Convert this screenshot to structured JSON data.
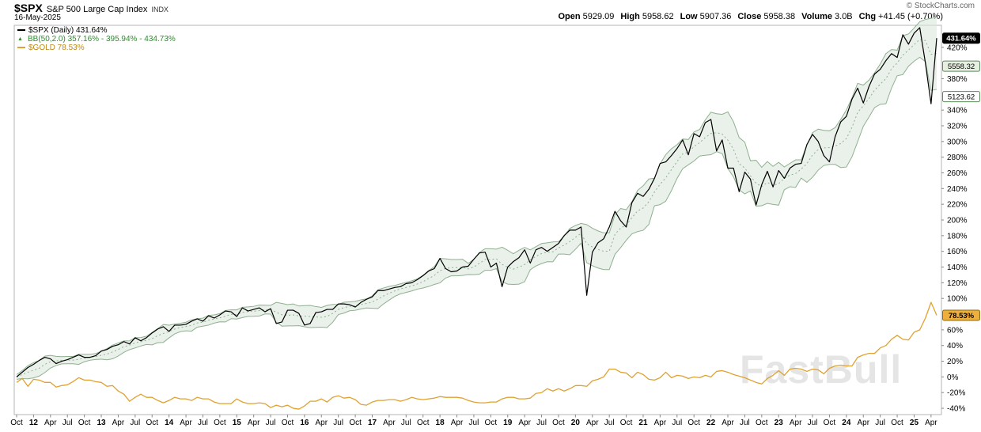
{
  "header": {
    "symbol": "$SPX",
    "name": "S&P 500 Large Cap Index",
    "exchange": "INDX",
    "date": "16-May-2025",
    "copyright": "© StockCharts.com",
    "quote": [
      {
        "label": "Open",
        "value": "5929.09"
      },
      {
        "label": "High",
        "value": "5958.62"
      },
      {
        "label": "Low",
        "value": "5907.36"
      },
      {
        "label": "Close",
        "value": "5958.38"
      },
      {
        "label": "Volume",
        "value": "3.0B"
      },
      {
        "label": "Chg",
        "value": "+41.45 (+0.70%)"
      }
    ]
  },
  "legend": {
    "spx": "$SPX (Daily) 431.64%",
    "bb": "BB(50,2.0) 357.16% - 395.94% - 434.73%",
    "gold": "$GOLD 78.53%"
  },
  "watermark": "FastBull",
  "colors": {
    "spx_line": "#000000",
    "gold_line": "#dfa231",
    "gold_legend": "#bb8a1a",
    "bb_green": "#2e8b2e",
    "band_fill": "#d8e6d8",
    "band_edge": "#8fb08f",
    "axis_text": "#000000",
    "border": "#b5b5b5",
    "watermark": "#cccccc"
  },
  "axis_markers": [
    {
      "label": "431.64%",
      "value": 431.64,
      "bg": "#000000",
      "fg": "#ffffff",
      "border": "#000000",
      "bold": true
    },
    {
      "label": "5558.32",
      "value": 395.94,
      "bg": "#e6efe0",
      "fg": "#000000",
      "border": "#5a8a5a",
      "bold": false
    },
    {
      "label": "5123.62",
      "value": 357.16,
      "bg": "#ffffff",
      "fg": "#000000",
      "border": "#5a8a5a",
      "bold": false
    },
    {
      "label": "78.53%",
      "value": 78.53,
      "bg": "#efaf3c",
      "fg": "#000000",
      "border": "#8a6a10",
      "bold": true
    }
  ],
  "chart_data": {
    "type": "line",
    "title": "$SPX daily percent performance vs $GOLD, Oct 2011 - 16 May 2025",
    "x_unit": "month",
    "x_start": "2011-10",
    "x_end": "2025-05",
    "x_tick_every": 3,
    "ylim": [
      -48,
      448
    ],
    "y_tick_step": 20,
    "y_tick_min": -40,
    "y_tick_max": 440,
    "grid": false,
    "legend_position": "top-left",
    "y_axis_side": "right",
    "x_tick_labels": [
      "Oct",
      "12",
      "Apr",
      "Jul",
      "Oct",
      "13",
      "Apr",
      "Jul",
      "Oct",
      "14",
      "Apr",
      "Jul",
      "Oct",
      "15",
      "Apr",
      "Jul",
      "Oct",
      "16",
      "Apr",
      "Jul",
      "Oct",
      "17",
      "Apr",
      "Jul",
      "Oct",
      "18",
      "Apr",
      "Jul",
      "Oct",
      "19",
      "Apr",
      "Jul",
      "Oct",
      "20",
      "Apr",
      "Jul",
      "Oct",
      "21",
      "Apr",
      "Jul",
      "Oct",
      "22",
      "Apr",
      "Jul",
      "Oct",
      "23",
      "Apr",
      "Jul",
      "Oct",
      "24",
      "Apr",
      "Jul",
      "Oct",
      "25",
      "Apr"
    ],
    "series": [
      {
        "name": "$SPX (Daily)",
        "color": "#000000",
        "last_value_pct": 431.64,
        "values": [
          0,
          6,
          12,
          16,
          21,
          25,
          23,
          17,
          20,
          22,
          25,
          28,
          25,
          25,
          27,
          33,
          35,
          39,
          41,
          45,
          42,
          50,
          46,
          50,
          56,
          61,
          64,
          58,
          66,
          66,
          67,
          71,
          74,
          71,
          78,
          75,
          79,
          84,
          83,
          77,
          88,
          84,
          86,
          88,
          83,
          87,
          68,
          70,
          85,
          85,
          81,
          66,
          68,
          82,
          83,
          86,
          86,
          93,
          93,
          92,
          89,
          95,
          99,
          102,
          110,
          110,
          112,
          114,
          115,
          119,
          120,
          124,
          129,
          135,
          138,
          151,
          138,
          134,
          135,
          140,
          141,
          150,
          158,
          159,
          140,
          145,
          115,
          140,
          147,
          152,
          162,
          145,
          162,
          165,
          160,
          165,
          170,
          180,
          187,
          187,
          191,
          104,
          159,
          171,
          176,
          191,
          211,
          199,
          191,
          222,
          234,
          230,
          239,
          253,
          272,
          274,
          282,
          291,
          302,
          283,
          310,
          306,
          324,
          328,
          288,
          302,
          266,
          266,
          236,
          261,
          252,
          219,
          245,
          262,
          242,
          263,
          253,
          266,
          271,
          272,
          296,
          309,
          300,
          282,
          274,
          306,
          325,
          332,
          354,
          368,
          349,
          370,
          386,
          392,
          403,
          412,
          407,
          436,
          424,
          438,
          445,
          400,
          348,
          431.64
        ]
      },
      {
        "name": "$GOLD",
        "color": "#dfa231",
        "last_value_pct": 78.53,
        "values": [
          -7,
          -2,
          -12,
          -3,
          -4,
          -7,
          -7,
          -13,
          -11,
          -10,
          -6,
          -1,
          -4,
          -4,
          -6,
          -7,
          -12,
          -11,
          -18,
          -22,
          -31,
          -26,
          -22,
          -26,
          -26,
          -30,
          -33,
          -30,
          -26,
          -28,
          -28,
          -30,
          -26,
          -28,
          -28,
          -32,
          -34,
          -34,
          -34,
          -28,
          -32,
          -34,
          -34,
          -33,
          -34,
          -39,
          -36,
          -38,
          -36,
          -40,
          -41,
          -37,
          -31,
          -31,
          -28,
          -32,
          -26,
          -24,
          -27,
          -26,
          -29,
          -35,
          -36,
          -32,
          -30,
          -30,
          -29,
          -29,
          -31,
          -29,
          -26,
          -28,
          -29,
          -28,
          -27,
          -25,
          -26,
          -26,
          -26,
          -27,
          -30,
          -32,
          -33,
          -33,
          -32,
          -32,
          -28,
          -26,
          -26,
          -28,
          -28,
          -27,
          -21,
          -20,
          -15,
          -18,
          -15,
          -18,
          -15,
          -11,
          -11,
          -12,
          -5,
          -3,
          0,
          10,
          10,
          6,
          5,
          -1,
          6,
          3,
          -3,
          -4,
          -1,
          6,
          -1,
          2,
          1,
          -2,
          0,
          -1,
          2,
          0,
          7,
          8,
          6,
          3,
          1,
          -1,
          -4,
          -7,
          -9,
          -2,
          2,
          8,
          2,
          10,
          11,
          10,
          7,
          10,
          9,
          4,
          11,
          14,
          15,
          14,
          14,
          25,
          28,
          30,
          30,
          37,
          40,
          48,
          53,
          48,
          47,
          57,
          60,
          75,
          95,
          78.53
        ]
      }
    ],
    "overlays": [
      {
        "name": "BB(50,2.0)",
        "lower_pct": 357.16,
        "mid_pct": 395.94,
        "upper_pct": 434.73,
        "mid_price_label": "5558.32",
        "lower_price_label": "5123.62"
      }
    ]
  }
}
